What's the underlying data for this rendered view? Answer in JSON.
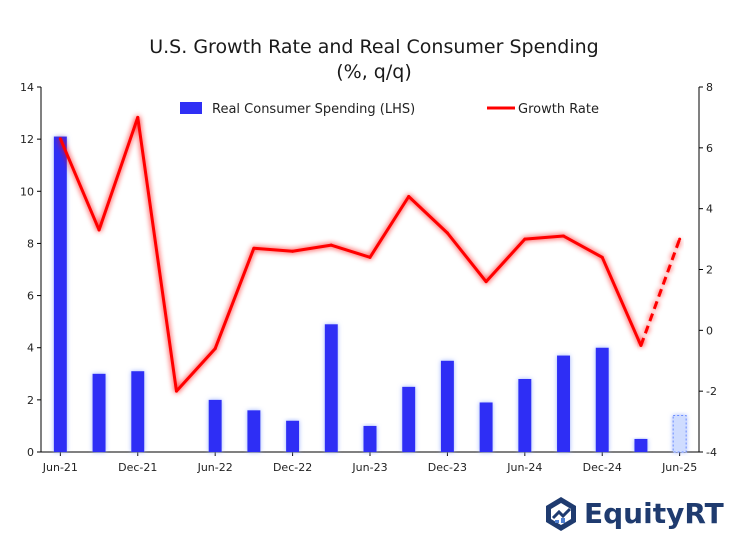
{
  "chart_data": {
    "type": "bar+line",
    "title": "U.S. Growth Rate and Real Consumer Spending",
    "subtitle": "(%, q/q)",
    "categories": [
      "Jun-21",
      "Sep-21",
      "Dec-21",
      "Mar-22",
      "Jun-22",
      "Sep-22",
      "Dec-22",
      "Mar-23",
      "Jun-23",
      "Sep-23",
      "Dec-23",
      "Mar-24",
      "Jun-24",
      "Sep-24",
      "Dec-24",
      "Mar-25",
      "Jun-25"
    ],
    "x_tick_labels": [
      "Jun-21",
      "Dec-21",
      "Jun-22",
      "Dec-22",
      "Jun-23",
      "Dec-23",
      "Jun-24",
      "Dec-24",
      "Jun-25"
    ],
    "series": [
      {
        "name": "Real Consumer Spending (LHS)",
        "type": "bar",
        "axis": "left",
        "color": "#2f2ff5",
        "values": [
          12.1,
          3.0,
          3.1,
          0.0,
          2.0,
          1.6,
          1.2,
          4.9,
          1.0,
          2.5,
          3.5,
          1.9,
          2.8,
          3.7,
          4.0,
          0.5,
          1.4
        ],
        "estimate_index": 16
      },
      {
        "name": "Growth Rate",
        "type": "line",
        "axis": "right",
        "color": "#ff0000",
        "values": [
          6.3,
          3.3,
          7.0,
          -2.0,
          -0.6,
          2.7,
          2.6,
          2.8,
          2.4,
          4.4,
          3.2,
          1.6,
          3.0,
          3.1,
          2.4,
          -0.5,
          3.0
        ],
        "dashed_from_index": 15
      }
    ],
    "y_left": {
      "min": 0,
      "max": 14,
      "ticks": [
        "0",
        "2",
        "4",
        "6",
        "8",
        "10",
        "12",
        "14"
      ]
    },
    "y_right": {
      "min": -4,
      "max": 8,
      "ticks": [
        "-4",
        "-2",
        "0",
        "2",
        "4",
        "6",
        "8"
      ]
    },
    "legend_position": "top"
  },
  "brand": {
    "name": "EquityRT",
    "color": "#1f3b6f"
  }
}
